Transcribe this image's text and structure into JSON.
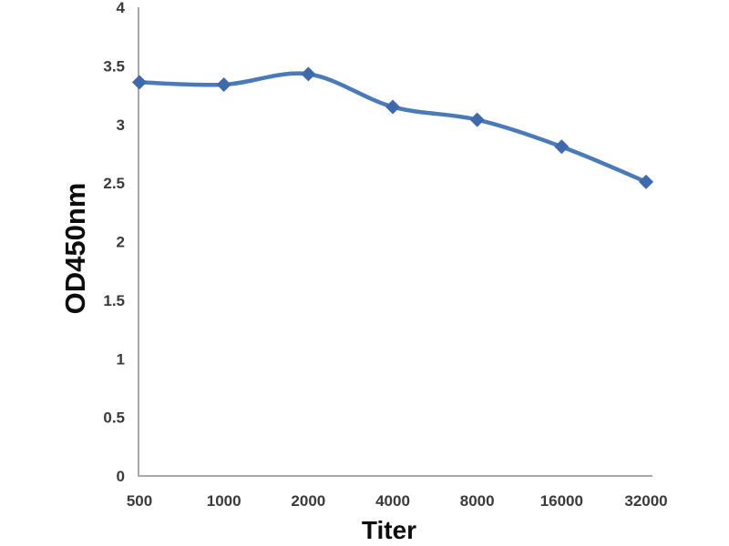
{
  "chart_data": {
    "type": "line",
    "title": "",
    "xlabel": "Titer",
    "ylabel": "OD450nm",
    "categories": [
      "500",
      "1000",
      "2000",
      "4000",
      "8000",
      "16000",
      "32000"
    ],
    "series": [
      {
        "name": "OD450nm",
        "values": [
          3.36,
          3.34,
          3.43,
          3.15,
          3.04,
          2.81,
          2.51
        ]
      }
    ],
    "ylim": [
      0,
      4
    ],
    "yticks": [
      "0",
      "0.5",
      "1",
      "1.5",
      "2",
      "2.5",
      "3",
      "3.5",
      "4"
    ],
    "grid": false,
    "legend": false,
    "marker": "diamond",
    "line_smooth": true,
    "colors": {
      "line": "#4a7ab8",
      "marker": "#3e69ac",
      "axis": "#a8a8a8"
    }
  }
}
